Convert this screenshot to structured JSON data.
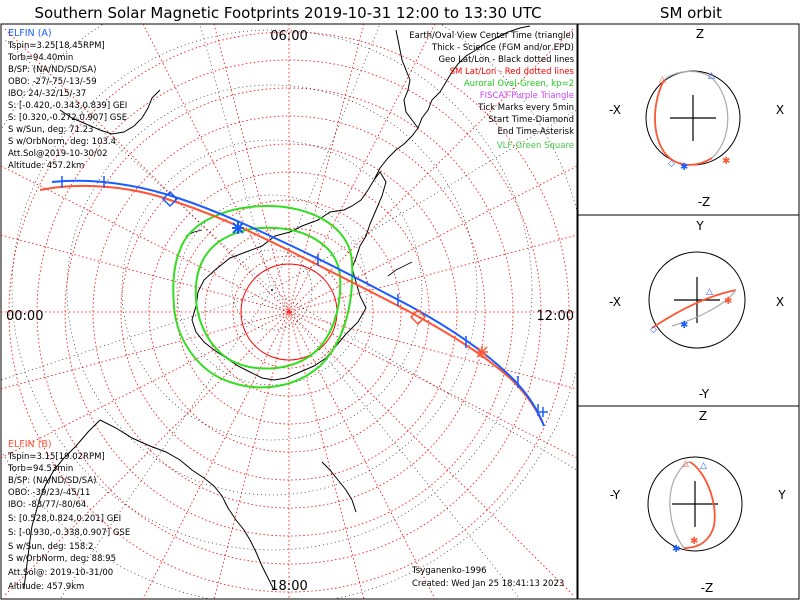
{
  "title": "Southern Solar Magnetic Footprints 2019-10-31 12:00 to 13:30 UTC",
  "orbit_panel_title": "SM orbit",
  "mlt_labels": {
    "top": "06:00",
    "left": "00:00",
    "right": "12:00",
    "bottom": "18:00"
  },
  "elfin_a": {
    "name": "ELFIN (A)",
    "color": "#1a5cff",
    "lines": [
      "Tspin=3.25[18.45RPM]",
      "Torb=94.40min",
      "B/SP: (NA/ND/SD/SA)",
      "OBO: -27/-75/-13/-59",
      "IBO: 24/-32/15/-37",
      "S: [-0.420,-0.343,0.839] GEI",
      "S: [0.320,-0.272,0.907] GSE",
      "S w/Sun, deg: 71.23",
      "S w/OrbNorm, deg: 103.4",
      "Att.Sol@2019-10-30/02",
      "Altitude: 457.2km"
    ]
  },
  "elfin_b": {
    "name": "ELFIN (B)",
    "color": "#ff5533",
    "lines": [
      "Tspin=3.15[19.02RPM]",
      "Torb=94.53min",
      "B/SP: (NA/ND/SD/SA)",
      "OBO: -39/23/-45/11",
      "IBO: -83/77/-80/64",
      "S: [0.528,0.824,0.201] GEI",
      "S: [-0.930,-0.338,0.907] GSE",
      "S w/Sun, deg: 158.2",
      "S w/OrbNorm, deg: 88.95",
      "Att.Sol@: 2019-10-31/00",
      "Altitude: 457.9km"
    ]
  },
  "legend": [
    {
      "text": "Earth/Oval View Center Time (triangle)",
      "color": "#000000"
    },
    {
      "text": "Thick - Science (FGM and/or EPD)",
      "color": "#000000"
    },
    {
      "text": "Geo Lat/Lon - Black dotted lines",
      "color": "#000000"
    },
    {
      "text": "SM Lat/Lon - Red dotted lines",
      "color": "#ff0000"
    },
    {
      "text": "Auroral Oval-Green, kp=2",
      "color": "#22cc22"
    },
    {
      "text": "FISCAT-Purple Triangle",
      "color": "#cc44ff"
    },
    {
      "text": "Tick Marks every 5min",
      "color": "#000000"
    },
    {
      "text": "Start Time-Diamond",
      "color": "#000000"
    },
    {
      "text": "End Time-Asterisk",
      "color": "#000000"
    },
    {
      "text": "VLF-Green Square",
      "color": "#44cc44"
    }
  ],
  "credit": "Tsyganenko-1996",
  "created": "Created: Wed Jan 25 18:41:13 2023",
  "orbit_axes": [
    {
      "top": "Z",
      "bottom": "-Z",
      "left": "-X",
      "right": "X"
    },
    {
      "top": "Y",
      "bottom": "-Y",
      "left": "-X",
      "right": "X"
    },
    {
      "top": "Z",
      "bottom": "-Z",
      "left": "-Y",
      "right": "Y"
    }
  ],
  "colors": {
    "sm_grid": "#ff0000",
    "geo_grid": "#000000",
    "oval": "#33dd22",
    "elfin_a": "#1a5cff",
    "elfin_b": "#ff5533"
  }
}
